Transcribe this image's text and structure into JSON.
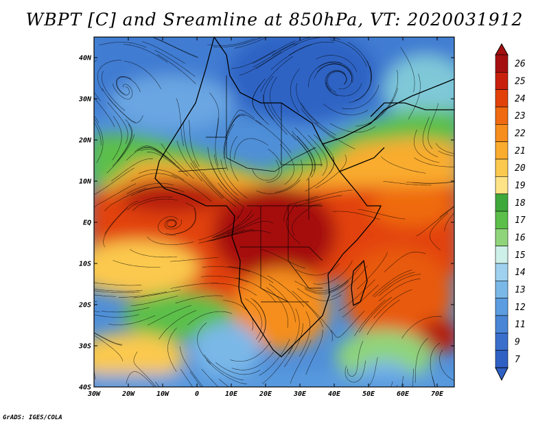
{
  "title": "WBPT [C] and Sreamline at 850hPa, VT: 2020031912",
  "credit": "GrADS: IGES/COLA",
  "map": {
    "lon_range": [
      -30,
      75
    ],
    "lat_range": [
      -40,
      45
    ],
    "lat_ticks": [
      {
        "value": 40,
        "label": "40N"
      },
      {
        "value": 30,
        "label": "30N"
      },
      {
        "value": 20,
        "label": "20N"
      },
      {
        "value": 10,
        "label": "10N"
      },
      {
        "value": 0,
        "label": "EQ"
      },
      {
        "value": -10,
        "label": "10S"
      },
      {
        "value": -20,
        "label": "20S"
      },
      {
        "value": -30,
        "label": "30S"
      },
      {
        "value": -40,
        "label": "40S"
      }
    ],
    "lon_ticks": [
      {
        "value": -30,
        "label": "30W"
      },
      {
        "value": -20,
        "label": "20W"
      },
      {
        "value": -10,
        "label": "10W"
      },
      {
        "value": 0,
        "label": "0"
      },
      {
        "value": 10,
        "label": "10E"
      },
      {
        "value": 20,
        "label": "20E"
      },
      {
        "value": 30,
        "label": "30E"
      },
      {
        "value": 40,
        "label": "40E"
      },
      {
        "value": 50,
        "label": "50E"
      },
      {
        "value": 60,
        "label": "60E"
      },
      {
        "value": 70,
        "label": "70E"
      }
    ]
  },
  "colorbar": {
    "levels": [
      "26",
      "25",
      "24",
      "23",
      "22",
      "21",
      "20",
      "19",
      "18",
      "17",
      "16",
      "15",
      "14",
      "13",
      "12",
      "11",
      "9",
      "7"
    ],
    "colors": [
      "#a50f0f",
      "#c8200c",
      "#e2420a",
      "#ef6a10",
      "#f58e1c",
      "#f9ac2d",
      "#fbc94e",
      "#fde385",
      "#3fa83b",
      "#5cbf4a",
      "#8fd47a",
      "#cdf0e8",
      "#9fd2ee",
      "#7ab8e8",
      "#5b9de0",
      "#4a86d6",
      "#3a6fcc",
      "#2f60c4"
    ],
    "top_cap": "#a50f0f",
    "bottom_cap": "#2f60c4"
  }
}
